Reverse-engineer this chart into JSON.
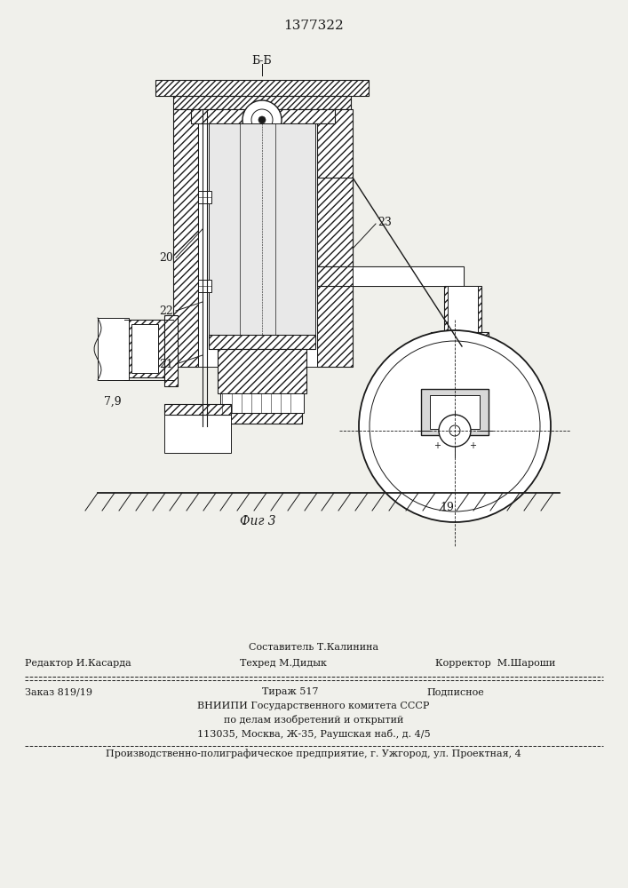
{
  "patent_number": "1377322",
  "fig_label": "Фиг 3",
  "section_label": "Б-Б",
  "bg_color": "#f0f0eb",
  "drawing_color": "#1a1a1a",
  "footer": {
    "line1_left": "Редактор И.Касарда",
    "line1_center_top": "Составитель Т.Калинина",
    "line1_center_bot": "Техред М.Дидык",
    "line1_right": "Корректор  М.Шароши",
    "line2_left": "Заказ 819/19",
    "line2_center": "Тираж 517",
    "line2_right": "Подписное",
    "line3": "ВНИИПИ Государственного комитета СССР",
    "line4": "по делам изобретений и открытий",
    "line5": "113035, Москва, Ж-35, Раушская наб., д. 4/5",
    "line6": "Производственно-полиграфическое предприятие, г. Ужгород, ул. Проектная, 4"
  }
}
